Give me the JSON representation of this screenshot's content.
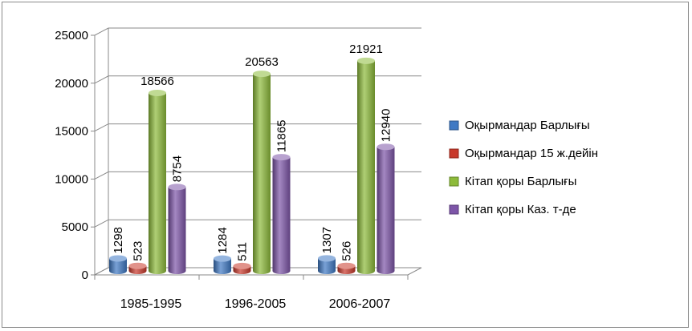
{
  "chart_data": {
    "type": "bar",
    "title": "",
    "xlabel": "",
    "ylabel": "",
    "categories": [
      "1985-1995",
      "1996-2005",
      "2006-2007"
    ],
    "ylim": [
      0,
      25000
    ],
    "yticks": [
      0,
      5000,
      10000,
      15000,
      20000,
      25000
    ],
    "grid": true,
    "legend_position": "right",
    "series": [
      {
        "name": "Оқырмандар Барлығы",
        "values": [
          1298,
          1284,
          1307
        ],
        "color": "#3f79c4"
      },
      {
        "name": "Оқырмандар 15 ж.дейін",
        "values": [
          523,
          511,
          526
        ],
        "color": "#c8392b"
      },
      {
        "name": "Кітап қоры Барлығы",
        "values": [
          18566,
          20563,
          21921
        ],
        "color": "#8dbb3a"
      },
      {
        "name": "Кітап қоры Каз. т-де",
        "values": [
          8754,
          11865,
          12940
        ],
        "color": "#7d55a8"
      }
    ]
  }
}
